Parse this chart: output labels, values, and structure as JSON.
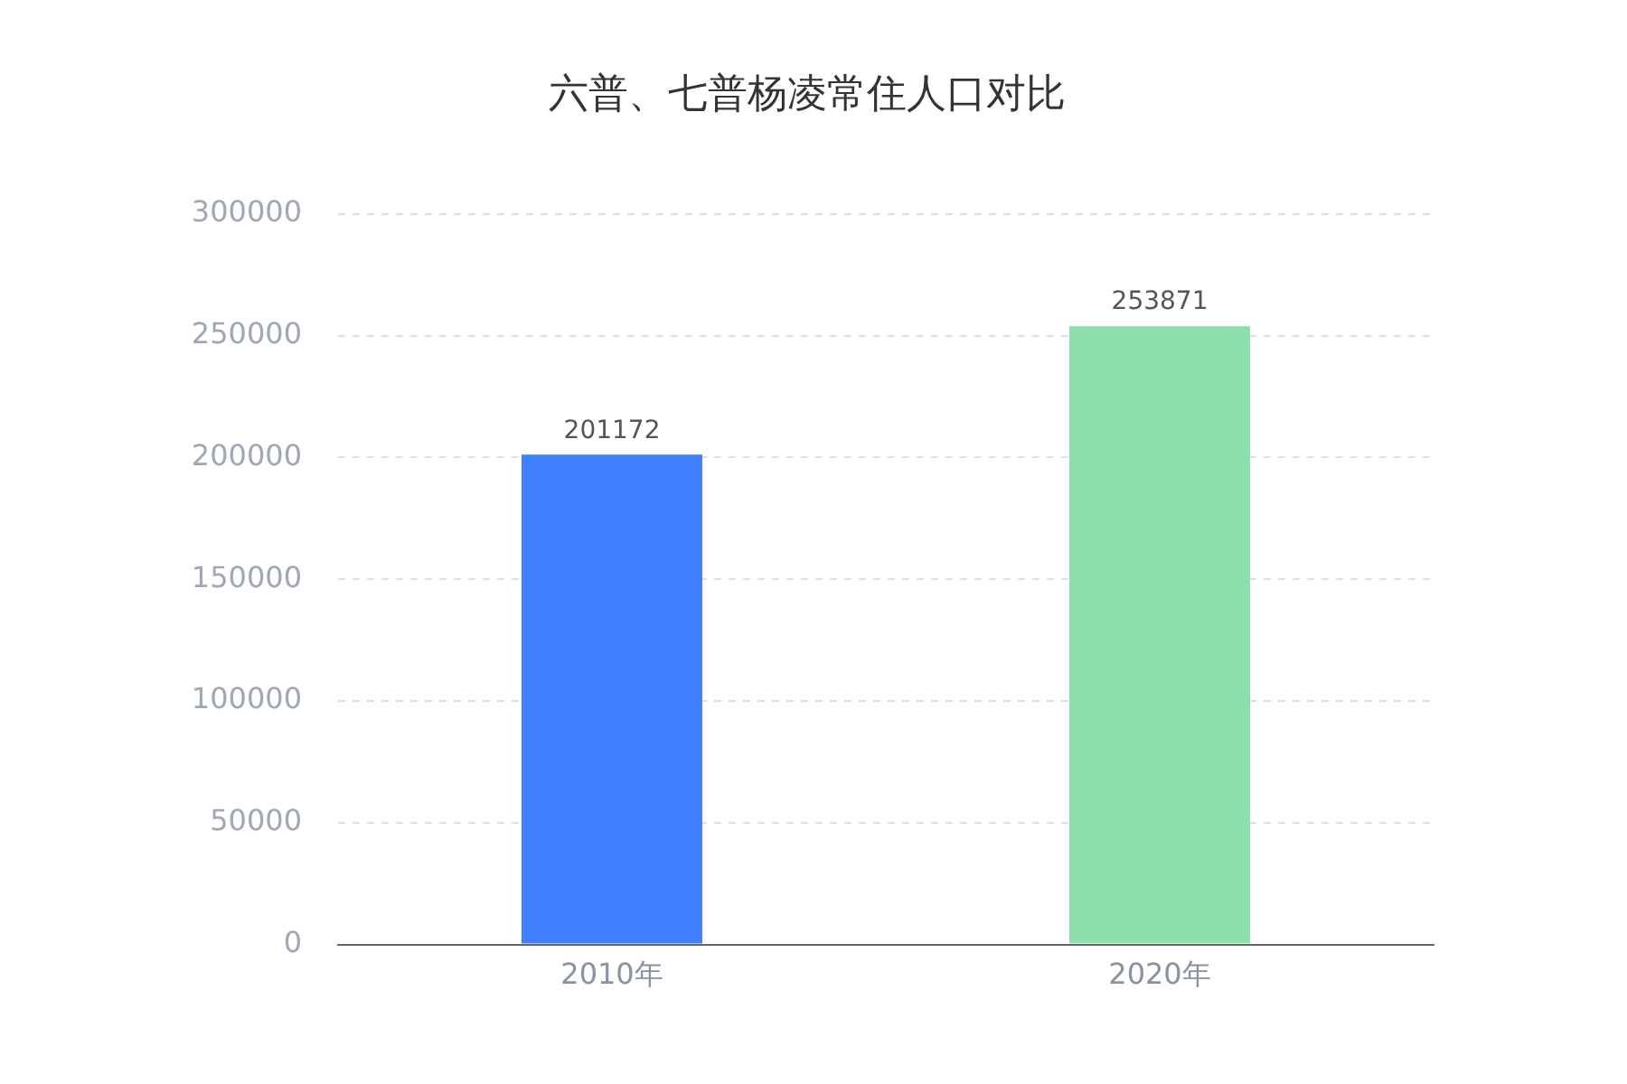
{
  "chart_data": {
    "type": "bar",
    "title": "六普、七普杨凌常住人口对比",
    "categories": [
      "2010年",
      "2020年"
    ],
    "values": [
      201172,
      253871
    ],
    "colors": [
      "#4080ff",
      "#8ce0a9"
    ],
    "ylim": [
      0,
      300000
    ],
    "yticks": [
      0,
      50000,
      100000,
      150000,
      200000,
      250000,
      300000
    ],
    "grid": "y",
    "data_labels": true
  }
}
